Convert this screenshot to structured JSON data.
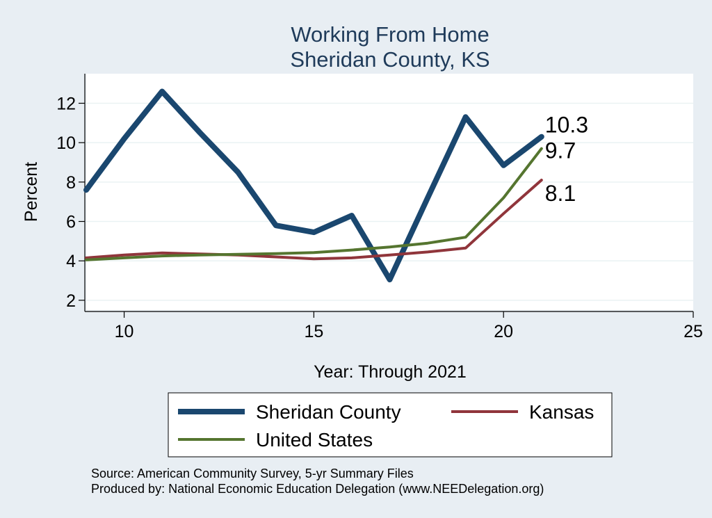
{
  "chart_data": {
    "type": "line",
    "title": [
      "Working From Home",
      "Sheridan County, KS"
    ],
    "xlabel": "Year: Through 2021",
    "ylabel": "Percent",
    "xlim": [
      9,
      25
    ],
    "ylim": [
      1.5,
      13.5
    ],
    "xticks": [
      10,
      15,
      20,
      25
    ],
    "yticks": [
      2,
      4,
      6,
      8,
      10,
      12
    ],
    "grid": true,
    "legend_position": "bottom",
    "series": [
      {
        "name": "Sheridan County",
        "color": "#1a476f",
        "x": [
          9,
          10,
          11,
          12,
          13,
          14,
          15,
          16,
          17,
          18,
          19,
          20,
          21
        ],
        "y": [
          7.6,
          10.2,
          12.6,
          10.5,
          8.5,
          5.8,
          5.45,
          6.3,
          3.05,
          7.2,
          11.3,
          8.85,
          10.3
        ],
        "end_label": "10.3"
      },
      {
        "name": "Kansas",
        "color": "#90353b",
        "x": [
          9,
          10,
          11,
          12,
          13,
          14,
          15,
          16,
          17,
          18,
          19,
          20,
          21
        ],
        "y": [
          4.15,
          4.3,
          4.4,
          4.35,
          4.3,
          4.2,
          4.1,
          4.15,
          4.3,
          4.45,
          4.65,
          6.4,
          8.1
        ],
        "end_label": "8.1"
      },
      {
        "name": "United States",
        "color": "#55752f",
        "x": [
          9,
          10,
          11,
          12,
          13,
          14,
          15,
          16,
          17,
          18,
          19,
          20,
          21
        ],
        "y": [
          4.05,
          4.15,
          4.25,
          4.3,
          4.33,
          4.37,
          4.42,
          4.55,
          4.7,
          4.9,
          5.2,
          7.2,
          9.7
        ],
        "end_label": "9.7"
      }
    ]
  },
  "notes": [
    "Source: American Community Survey, 5-yr Summary Files",
    "Produced by: National Economic Education Delegation (www.NEEDelegation.org)"
  ]
}
